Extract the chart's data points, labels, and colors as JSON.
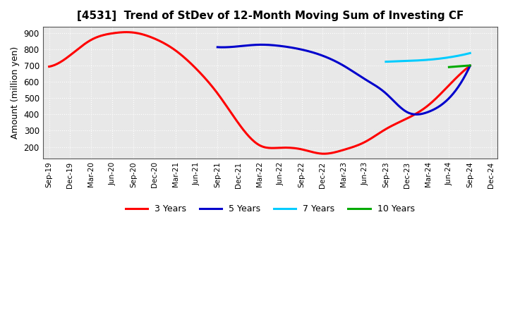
{
  "title": "[4531]  Trend of StDev of 12-Month Moving Sum of Investing CF",
  "ylabel": "Amount (million yen)",
  "background_color": "#ffffff",
  "plot_bg_color": "#e8e8e8",
  "grid_color": "#ffffff",
  "ylim": [
    130,
    940
  ],
  "yticks": [
    200,
    300,
    400,
    500,
    600,
    700,
    800,
    900
  ],
  "series": {
    "3years": {
      "color": "#ff0000",
      "label": "3 Years",
      "x": [
        "Sep-19",
        "Dec-19",
        "Mar-20",
        "Jun-20",
        "Sep-20",
        "Dec-20",
        "Mar-21",
        "Jun-21",
        "Sep-21",
        "Dec-21",
        "Mar-22",
        "Jun-22",
        "Sep-22",
        "Dec-22",
        "Mar-23",
        "Jun-23",
        "Sep-23",
        "Dec-23",
        "Mar-24",
        "Jun-24",
        "Sep-24"
      ],
      "y": [
        695,
        765,
        860,
        900,
        905,
        868,
        795,
        680,
        530,
        345,
        210,
        195,
        185,
        158,
        182,
        230,
        310,
        375,
        455,
        580,
        700
      ]
    },
    "5years": {
      "color": "#0000cc",
      "label": "5 Years",
      "x": [
        "Sep-21",
        "Dec-21",
        "Mar-22",
        "Jun-22",
        "Sep-22",
        "Dec-22",
        "Mar-23",
        "Jun-23",
        "Sep-23",
        "Dec-23",
        "Mar-24",
        "Jun-24",
        "Sep-24"
      ],
      "y": [
        815,
        820,
        830,
        822,
        800,
        762,
        700,
        618,
        530,
        415,
        415,
        500,
        700
      ]
    },
    "7years": {
      "color": "#00ccff",
      "label": "7 Years",
      "x": [
        "Sep-23",
        "Dec-23",
        "Mar-24",
        "Jun-24",
        "Sep-24"
      ],
      "y": [
        725,
        730,
        737,
        752,
        778
      ]
    },
    "10years": {
      "color": "#00aa00",
      "label": "10 Years",
      "x": [
        "Jun-24",
        "Sep-24"
      ],
      "y": [
        692,
        702
      ]
    }
  },
  "xtick_labels": [
    "Sep-19",
    "Dec-19",
    "Mar-20",
    "Jun-20",
    "Sep-20",
    "Dec-20",
    "Mar-21",
    "Jun-21",
    "Sep-21",
    "Dec-21",
    "Mar-22",
    "Jun-22",
    "Sep-22",
    "Dec-22",
    "Mar-23",
    "Jun-23",
    "Sep-23",
    "Dec-23",
    "Mar-24",
    "Jun-24",
    "Sep-24",
    "Dec-24"
  ],
  "legend_order": [
    "3years",
    "5years",
    "7years",
    "10years"
  ]
}
